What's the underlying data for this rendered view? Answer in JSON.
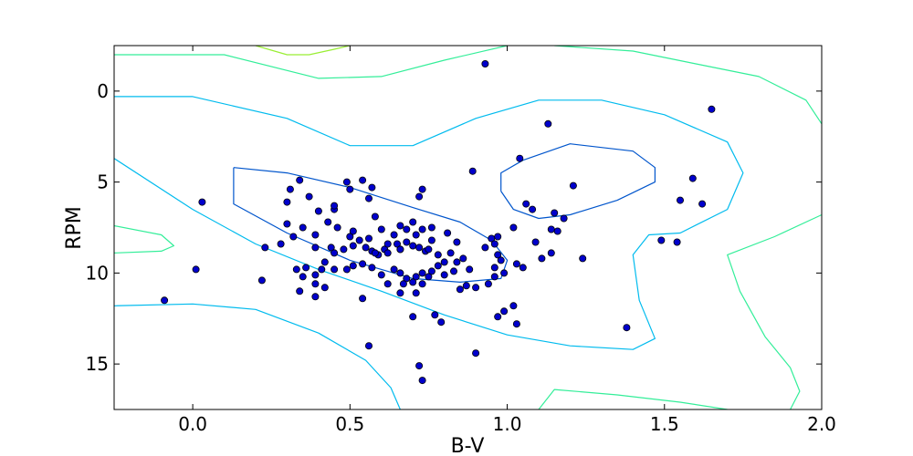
{
  "chart_data": {
    "type": "scatter",
    "title": "",
    "xlabel": "B-V",
    "ylabel": "RPM",
    "xlim": [
      -0.25,
      2.0
    ],
    "ylim": [
      17.5,
      -2.5
    ],
    "y_inverted": true,
    "grid": false,
    "legend": "none",
    "xticks": [
      0.0,
      0.5,
      1.0,
      1.5,
      2.0
    ],
    "xtick_labels": [
      "0.0",
      "0.5",
      "1.0",
      "1.5",
      "2.0"
    ],
    "yticks": [
      0,
      5,
      10,
      15
    ],
    "ytick_labels": [
      "0",
      "5",
      "10",
      "15"
    ],
    "point_color": "#0000cc",
    "point_edge_color": "#000000",
    "points": [
      [
        0.93,
        -1.5
      ],
      [
        1.65,
        1.0
      ],
      [
        1.13,
        1.8
      ],
      [
        1.04,
        3.7
      ],
      [
        0.89,
        4.4
      ],
      [
        1.21,
        5.2
      ],
      [
        1.59,
        4.8
      ],
      [
        1.55,
        6.0
      ],
      [
        1.62,
        6.2
      ],
      [
        1.06,
        6.2
      ],
      [
        1.08,
        6.5
      ],
      [
        1.15,
        6.7
      ],
      [
        1.18,
        7.0
      ],
      [
        1.02,
        7.5
      ],
      [
        1.14,
        7.6
      ],
      [
        1.16,
        7.7
      ],
      [
        1.09,
        8.3
      ],
      [
        1.49,
        8.2
      ],
      [
        1.54,
        8.3
      ],
      [
        1.14,
        8.9
      ],
      [
        1.24,
        9.2
      ],
      [
        1.11,
        9.2
      ],
      [
        1.03,
        9.5
      ],
      [
        1.05,
        9.7
      ],
      [
        0.97,
        8.0
      ],
      [
        0.95,
        8.1
      ],
      [
        0.96,
        8.4
      ],
      [
        0.93,
        8.6
      ],
      [
        0.97,
        9.0
      ],
      [
        0.98,
        9.3
      ],
      [
        0.96,
        9.7
      ],
      [
        0.99,
        10.0
      ],
      [
        0.96,
        10.2
      ],
      [
        0.94,
        10.6
      ],
      [
        0.9,
        10.8
      ],
      [
        0.87,
        10.7
      ],
      [
        0.85,
        10.9
      ],
      [
        0.88,
        9.8
      ],
      [
        0.83,
        9.9
      ],
      [
        0.84,
        9.4
      ],
      [
        0.8,
        9.4
      ],
      [
        0.78,
        9.6
      ],
      [
        0.76,
        9.9
      ],
      [
        0.73,
        10.0
      ],
      [
        0.71,
        10.2
      ],
      [
        0.68,
        10.3
      ],
      [
        0.66,
        10.0
      ],
      [
        0.64,
        9.8
      ],
      [
        0.67,
        10.6
      ],
      [
        0.7,
        10.5
      ],
      [
        0.73,
        10.6
      ],
      [
        0.75,
        10.2
      ],
      [
        0.8,
        10.1
      ],
      [
        0.66,
        11.1
      ],
      [
        0.71,
        11.1
      ],
      [
        0.62,
        10.6
      ],
      [
        0.6,
        10.1
      ],
      [
        0.57,
        9.7
      ],
      [
        0.54,
        9.5
      ],
      [
        0.51,
        9.6
      ],
      [
        0.49,
        9.8
      ],
      [
        0.45,
        9.8
      ],
      [
        0.42,
        9.4
      ],
      [
        0.41,
        9.8
      ],
      [
        0.39,
        10.1
      ],
      [
        0.36,
        9.7
      ],
      [
        0.33,
        9.8
      ],
      [
        0.35,
        10.2
      ],
      [
        0.39,
        10.6
      ],
      [
        0.42,
        10.8
      ],
      [
        0.34,
        11.0
      ],
      [
        0.39,
        11.3
      ],
      [
        0.54,
        11.4
      ],
      [
        0.22,
        10.4
      ],
      [
        0.23,
        8.6
      ],
      [
        0.28,
        8.4
      ],
      [
        0.32,
        8.0
      ],
      [
        0.3,
        7.3
      ],
      [
        0.35,
        7.5
      ],
      [
        0.39,
        7.9
      ],
      [
        0.39,
        8.6
      ],
      [
        0.44,
        8.6
      ],
      [
        0.45,
        8.9
      ],
      [
        0.48,
        8.7
      ],
      [
        0.51,
        8.5
      ],
      [
        0.5,
        8.0
      ],
      [
        0.53,
        8.2
      ],
      [
        0.55,
        8.6
      ],
      [
        0.57,
        8.8
      ],
      [
        0.59,
        9.0
      ],
      [
        0.61,
        8.7
      ],
      [
        0.62,
        8.4
      ],
      [
        0.65,
        8.4
      ],
      [
        0.66,
        8.7
      ],
      [
        0.68,
        8.3
      ],
      [
        0.7,
        8.5
      ],
      [
        0.72,
        8.6
      ],
      [
        0.74,
        8.8
      ],
      [
        0.76,
        8.2
      ],
      [
        0.71,
        7.9
      ],
      [
        0.68,
        7.6
      ],
      [
        0.66,
        7.4
      ],
      [
        0.7,
        7.2
      ],
      [
        0.73,
        7.6
      ],
      [
        0.76,
        7.5
      ],
      [
        0.81,
        7.8
      ],
      [
        0.84,
        8.3
      ],
      [
        0.82,
        8.9
      ],
      [
        0.86,
        9.2
      ],
      [
        0.78,
        9.0
      ],
      [
        0.75,
        8.7
      ],
      [
        0.62,
        8.9
      ],
      [
        0.58,
        8.9
      ],
      [
        0.56,
        8.1
      ],
      [
        0.6,
        7.6
      ],
      [
        0.64,
        7.9
      ],
      [
        0.66,
        8.7
      ],
      [
        0.46,
        7.5
      ],
      [
        0.43,
        7.2
      ],
      [
        0.45,
        6.5
      ],
      [
        0.45,
        6.3
      ],
      [
        0.4,
        6.6
      ],
      [
        0.37,
        5.8
      ],
      [
        0.31,
        5.4
      ],
      [
        0.3,
        6.1
      ],
      [
        0.34,
        4.9
      ],
      [
        0.49,
        5.0
      ],
      [
        0.5,
        5.4
      ],
      [
        0.54,
        4.9
      ],
      [
        0.57,
        5.3
      ],
      [
        0.56,
        5.9
      ],
      [
        0.58,
        6.9
      ],
      [
        0.51,
        7.7
      ],
      [
        0.72,
        5.8
      ],
      [
        0.73,
        5.4
      ],
      [
        0.03,
        6.1
      ],
      [
        0.01,
        9.8
      ],
      [
        -0.09,
        11.5
      ],
      [
        0.7,
        12.4
      ],
      [
        0.77,
        12.3
      ],
      [
        0.79,
        12.7
      ],
      [
        0.97,
        12.4
      ],
      [
        0.99,
        12.1
      ],
      [
        1.02,
        11.8
      ],
      [
        1.03,
        12.8
      ],
      [
        1.38,
        13.0
      ],
      [
        0.56,
        14.0
      ],
      [
        0.9,
        14.4
      ],
      [
        0.72,
        15.1
      ],
      [
        0.73,
        15.9
      ]
    ],
    "contours": [
      {
        "level": "inner",
        "color": "#0055cc",
        "paths": [
          [
            [
              0.13,
              4.2
            ],
            [
              0.3,
              4.5
            ],
            [
              0.5,
              5.3
            ],
            [
              0.7,
              6.4
            ],
            [
              0.85,
              7.2
            ],
            [
              0.95,
              8.2
            ],
            [
              1.0,
              9.3
            ],
            [
              0.98,
              10.3
            ],
            [
              0.85,
              10.5
            ],
            [
              0.7,
              10.3
            ],
            [
              0.5,
              9.3
            ],
            [
              0.3,
              7.8
            ],
            [
              0.13,
              6.2
            ],
            [
              0.13,
              4.2
            ]
          ],
          [
            [
              0.98,
              5.5
            ],
            [
              0.98,
              4.5
            ],
            [
              1.05,
              3.8
            ],
            [
              1.2,
              2.9
            ],
            [
              1.4,
              3.3
            ],
            [
              1.47,
              4.2
            ],
            [
              1.47,
              5.0
            ],
            [
              1.35,
              6.0
            ],
            [
              1.2,
              6.8
            ],
            [
              1.1,
              7.0
            ],
            [
              1.02,
              6.5
            ],
            [
              0.98,
              5.5
            ]
          ]
        ]
      },
      {
        "level": "middle",
        "color": "#00bbee",
        "paths": [
          [
            [
              -0.25,
              0.3
            ],
            [
              0.0,
              0.3
            ],
            [
              0.3,
              1.5
            ],
            [
              0.5,
              3.0
            ],
            [
              0.7,
              3.0
            ],
            [
              0.9,
              1.5
            ],
            [
              1.1,
              0.5
            ],
            [
              1.3,
              0.5
            ],
            [
              1.5,
              1.3
            ],
            [
              1.7,
              2.8
            ],
            [
              1.75,
              4.5
            ],
            [
              1.7,
              6.5
            ],
            [
              1.55,
              7.8
            ],
            [
              1.45,
              7.9
            ],
            [
              1.4,
              9.0
            ],
            [
              1.42,
              11.5
            ],
            [
              1.47,
              13.6
            ],
            [
              1.4,
              14.2
            ],
            [
              1.2,
              14.0
            ],
            [
              1.0,
              13.4
            ],
            [
              0.8,
              12.3
            ],
            [
              0.6,
              11.0
            ],
            [
              0.4,
              9.8
            ],
            [
              0.2,
              8.4
            ],
            [
              0.0,
              6.5
            ],
            [
              -0.25,
              3.7
            ]
          ],
          [
            [
              -0.25,
              11.8
            ],
            [
              0.0,
              11.7
            ],
            [
              0.2,
              12.0
            ],
            [
              0.4,
              13.3
            ],
            [
              0.55,
              14.8
            ],
            [
              0.63,
              16.3
            ],
            [
              0.66,
              17.5
            ]
          ]
        ]
      },
      {
        "level": "outer",
        "color": "#33ee99",
        "paths": [
          [
            [
              -0.25,
              -2.0
            ],
            [
              0.1,
              -2.0
            ],
            [
              0.4,
              -0.7
            ],
            [
              0.6,
              -0.8
            ],
            [
              0.8,
              -1.7
            ],
            [
              1.0,
              -2.5
            ]
          ],
          [
            [
              -0.25,
              7.4
            ],
            [
              -0.1,
              7.9
            ],
            [
              -0.06,
              8.5
            ],
            [
              -0.1,
              8.8
            ],
            [
              -0.25,
              8.9
            ]
          ],
          [
            [
              1.15,
              -2.5
            ],
            [
              1.4,
              -2.2
            ],
            [
              1.6,
              -1.5
            ],
            [
              1.8,
              -0.8
            ],
            [
              1.95,
              0.5
            ],
            [
              2.0,
              1.8
            ]
          ],
          [
            [
              2.0,
              6.8
            ],
            [
              1.85,
              8.0
            ],
            [
              1.7,
              9.0
            ],
            [
              1.74,
              11.0
            ],
            [
              1.82,
              13.5
            ],
            [
              1.9,
              15.2
            ],
            [
              1.93,
              16.5
            ],
            [
              1.9,
              17.5
            ]
          ],
          [
            [
              1.1,
              17.5
            ],
            [
              1.15,
              16.4
            ],
            [
              1.35,
              16.7
            ],
            [
              1.55,
              17.1
            ],
            [
              1.7,
              17.5
            ]
          ]
        ]
      },
      {
        "level": "outermost",
        "color": "#99ee33",
        "paths": [
          [
            [
              0.2,
              -2.5
            ],
            [
              0.3,
              -2.0
            ],
            [
              0.37,
              -2.0
            ],
            [
              0.45,
              -2.3
            ],
            [
              0.5,
              -2.5
            ]
          ]
        ]
      }
    ]
  }
}
